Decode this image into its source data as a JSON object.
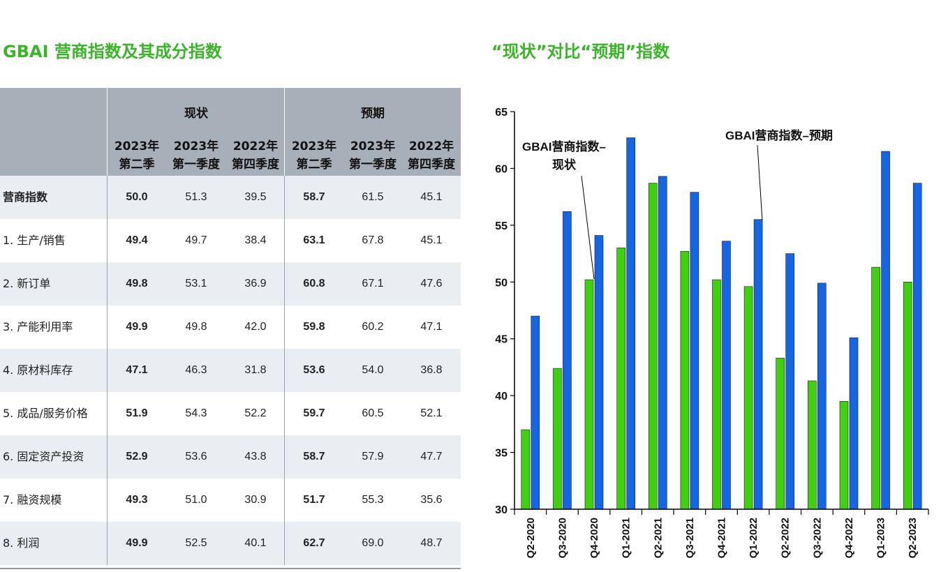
{
  "left_title": "GBAI 营商指数及其成分指数",
  "right_title": "“现状”对比“预期”指数",
  "table": {
    "group_current": "现状",
    "group_expect": "预期",
    "col_headers": [
      {
        "year": "2023年",
        "q": "第二季"
      },
      {
        "year": "2023年",
        "q": "第一季度"
      },
      {
        "year": "2022年",
        "q": "第四季度"
      },
      {
        "year": "2023年",
        "q": "第二季"
      },
      {
        "year": "2023年",
        "q": "第一季度"
      },
      {
        "year": "2022年",
        "q": "第四季度"
      }
    ],
    "rows": [
      {
        "label": "营商指数",
        "values": [
          "50.0",
          "51.3",
          "39.5",
          "58.7",
          "61.5",
          "45.1"
        ]
      },
      {
        "label": "1. 生产/销售",
        "values": [
          "49.4",
          "49.7",
          "38.4",
          "63.1",
          "67.8",
          "45.1"
        ]
      },
      {
        "label": "2. 新订单",
        "values": [
          "49.8",
          "53.1",
          "36.9",
          "60.8",
          "67.1",
          "47.6"
        ]
      },
      {
        "label": "3. 产能利用率",
        "values": [
          "49.9",
          "49.8",
          "42.0",
          "59.8",
          "60.2",
          "47.1"
        ]
      },
      {
        "label": "4. 原材料库存",
        "values": [
          "47.1",
          "46.3",
          "31.8",
          "53.6",
          "54.0",
          "36.8"
        ]
      },
      {
        "label": "5. 成品/服务价格",
        "values": [
          "51.9",
          "54.3",
          "52.2",
          "59.7",
          "60.5",
          "52.1"
        ]
      },
      {
        "label": "6. 固定资产投资",
        "values": [
          "52.9",
          "53.6",
          "43.8",
          "58.7",
          "57.9",
          "47.7"
        ]
      },
      {
        "label": "7. 融资规模",
        "values": [
          "49.3",
          "51.0",
          "30.9",
          "51.7",
          "55.3",
          "35.6"
        ]
      },
      {
        "label": "8. 利润",
        "values": [
          "49.9",
          "52.5",
          "40.1",
          "62.7",
          "69.0",
          "48.7"
        ]
      }
    ]
  },
  "colors": {
    "current": "#3fd10f",
    "expect": "#1466e6",
    "title": "#3ab52a",
    "header_bg": "#a7afb9",
    "row_shade": "#eaedf1"
  },
  "chart_data": {
    "type": "bar",
    "title": "“现状”对比“预期”指数",
    "categories": [
      "Q2-2020",
      "Q3-2020",
      "Q4-2020",
      "Q1-2021",
      "Q2-2021",
      "Q3-2021",
      "Q4-2021",
      "Q1-2022",
      "Q2-2022",
      "Q3-2022",
      "Q4-2022",
      "Q1-2023",
      "Q2-2023"
    ],
    "series": [
      {
        "name": "GBAI营商指数–现状",
        "values": [
          37.0,
          42.4,
          50.2,
          53.0,
          58.7,
          52.7,
          50.2,
          49.6,
          43.3,
          41.3,
          39.5,
          51.3,
          50.0
        ]
      },
      {
        "name": "GBAI营商指数–预期",
        "values": [
          47.0,
          56.2,
          54.1,
          62.7,
          59.3,
          57.9,
          53.6,
          55.5,
          52.5,
          49.9,
          45.1,
          61.5,
          58.7
        ]
      }
    ],
    "ylim": [
      30,
      65
    ],
    "yticks": [
      30,
      35,
      40,
      45,
      50,
      55,
      60,
      65
    ],
    "annotations": [
      {
        "line1": "GBAI营商指数–",
        "line2": "现状"
      },
      {
        "line1": "GBAI营商指数–预期"
      }
    ],
    "grid": false
  }
}
